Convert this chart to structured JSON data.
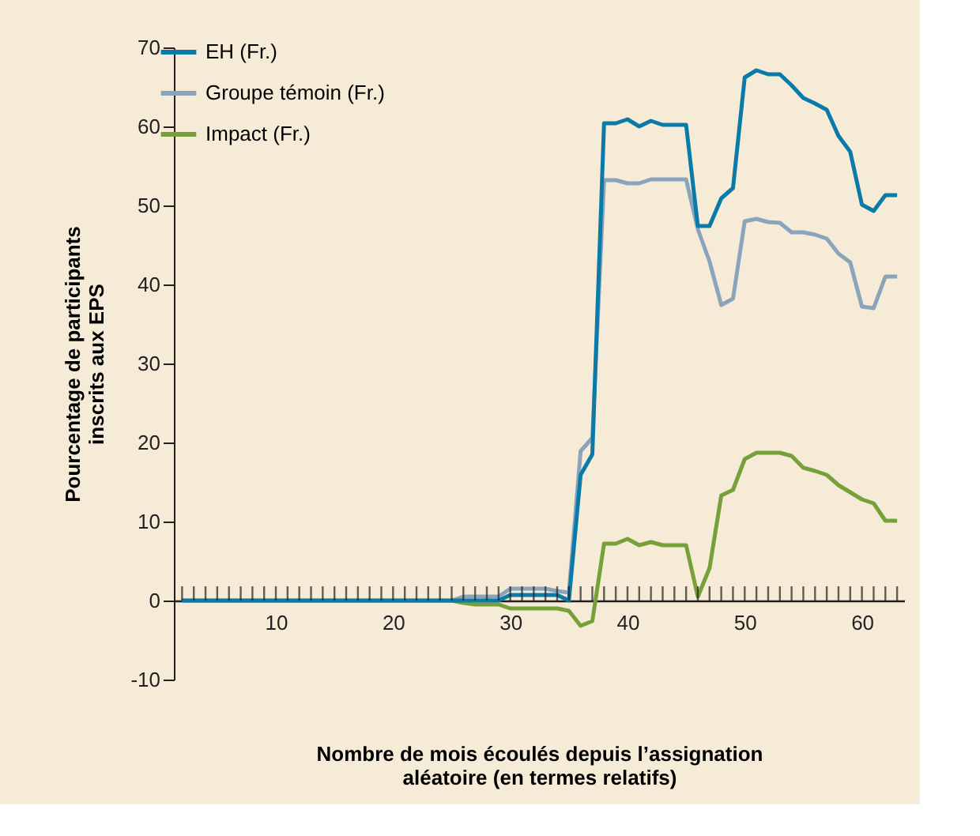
{
  "chart_data": {
    "type": "line",
    "xlabel": "Nombre de mois écoulés depuis l’assignation\naléatoire (en termes relatifs)",
    "ylabel": "Pourcentage de participants\ninscrits aux EPS",
    "x": [
      2,
      3,
      4,
      5,
      6,
      7,
      8,
      9,
      10,
      11,
      12,
      13,
      14,
      15,
      16,
      17,
      18,
      19,
      20,
      21,
      22,
      23,
      24,
      25,
      26,
      27,
      28,
      29,
      30,
      31,
      32,
      33,
      34,
      35,
      36,
      37,
      38,
      39,
      40,
      41,
      42,
      43,
      44,
      45,
      46,
      47,
      48,
      49,
      50,
      51,
      52,
      53,
      54,
      55,
      56,
      57,
      58,
      59,
      60,
      61,
      62,
      63
    ],
    "series": [
      {
        "name": "EH (Fr.)",
        "color": "#0a7aa8",
        "values": [
          0,
          0,
          0,
          0,
          0,
          0,
          0,
          0,
          0,
          0,
          0,
          0,
          0,
          0,
          0,
          0,
          0,
          0,
          0,
          0,
          0,
          0,
          0,
          0,
          0,
          0,
          0,
          0,
          0.7,
          0.7,
          0.7,
          0.7,
          0.7,
          0,
          15.9,
          18.5,
          60.4,
          60.4,
          60.9,
          60.0,
          60.7,
          60.2,
          60.2,
          60.2,
          47.4,
          47.4,
          50.9,
          52.2,
          66.2,
          67.1,
          66.6,
          66.6,
          65.2,
          63.6,
          62.9,
          62.1,
          58.8,
          56.8,
          50.1,
          49.3,
          51.3,
          51.3
        ]
      },
      {
        "name": "Groupe témoin (Fr.)",
        "color": "#8ba4bc",
        "values": [
          0,
          0,
          0,
          0,
          0,
          0,
          0,
          0,
          0,
          0,
          0,
          0,
          0,
          0,
          0,
          0,
          0,
          0,
          0,
          0,
          0,
          0,
          0,
          0,
          0.5,
          0.5,
          0.5,
          0.5,
          1.5,
          1.5,
          1.5,
          1.5,
          1.2,
          1.0,
          18.9,
          20.6,
          53.2,
          53.2,
          52.8,
          52.8,
          53.3,
          53.3,
          53.3,
          53.3,
          47.0,
          42.9,
          37.4,
          38.2,
          48.0,
          48.3,
          47.9,
          47.8,
          46.6,
          46.6,
          46.3,
          45.8,
          43.9,
          42.8,
          37.2,
          37.0,
          41.0,
          41.0
        ]
      },
      {
        "name": "Impact (Fr.)",
        "color": "#77a03a",
        "values": [
          null,
          null,
          null,
          null,
          null,
          null,
          null,
          null,
          null,
          null,
          null,
          null,
          null,
          null,
          null,
          null,
          null,
          null,
          null,
          null,
          null,
          null,
          null,
          0,
          -0.3,
          -0.5,
          -0.5,
          -0.5,
          -1.0,
          -1.0,
          -1.0,
          -1.0,
          -1.0,
          -1.3,
          -3.2,
          -2.6,
          7.2,
          7.2,
          7.8,
          7.0,
          7.4,
          7.0,
          7.0,
          7.0,
          0.5,
          4.1,
          13.3,
          14.0,
          17.9,
          18.7,
          18.7,
          18.7,
          18.3,
          16.8,
          16.4,
          15.9,
          14.6,
          13.7,
          12.8,
          12.3,
          10.1,
          10.1
        ]
      }
    ],
    "xlim": [
      1.3,
      63.6
    ],
    "xticks": [
      {
        "value": 2,
        "label": null
      },
      {
        "value": 3,
        "label": null
      },
      {
        "value": 4,
        "label": null
      },
      {
        "value": 5,
        "label": null
      },
      {
        "value": 6,
        "label": null
      },
      {
        "value": 7,
        "label": null
      },
      {
        "value": 8,
        "label": null
      },
      {
        "value": 9,
        "label": null
      },
      10,
      {
        "value": 11,
        "label": null
      },
      {
        "value": 12,
        "label": null
      },
      {
        "value": 13,
        "label": null
      },
      {
        "value": 14,
        "label": null
      },
      {
        "value": 15,
        "label": null
      },
      {
        "value": 16,
        "label": null
      },
      {
        "value": 17,
        "label": null
      },
      {
        "value": 18,
        "label": null
      },
      {
        "value": 19,
        "label": null
      },
      20,
      {
        "value": 21,
        "label": null
      },
      {
        "value": 22,
        "label": null
      },
      {
        "value": 23,
        "label": null
      },
      {
        "value": 24,
        "label": null
      },
      {
        "value": 25,
        "label": null
      },
      {
        "value": 26,
        "label": null
      },
      {
        "value": 27,
        "label": null
      },
      {
        "value": 28,
        "label": null
      },
      {
        "value": 29,
        "label": null
      },
      30,
      {
        "value": 31,
        "label": null
      },
      {
        "value": 32,
        "label": null
      },
      {
        "value": 33,
        "label": null
      },
      {
        "value": 34,
        "label": null
      },
      {
        "value": 35,
        "label": null
      },
      {
        "value": 36,
        "label": null
      },
      {
        "value": 37,
        "label": null
      },
      {
        "value": 38,
        "label": null
      },
      {
        "value": 39,
        "label": null
      },
      40,
      {
        "value": 41,
        "label": null
      },
      {
        "value": 42,
        "label": null
      },
      {
        "value": 43,
        "label": null
      },
      {
        "value": 44,
        "label": null
      },
      {
        "value": 45,
        "label": null
      },
      {
        "value": 46,
        "label": null
      },
      {
        "value": 47,
        "label": null
      },
      {
        "value": 48,
        "label": null
      },
      {
        "value": 49,
        "label": null
      },
      50,
      {
        "value": 51,
        "label": null
      },
      {
        "value": 52,
        "label": null
      },
      {
        "value": 53,
        "label": null
      },
      {
        "value": 54,
        "label": null
      },
      {
        "value": 55,
        "label": null
      },
      {
        "value": 56,
        "label": null
      },
      {
        "value": 57,
        "label": null
      },
      {
        "value": 58,
        "label": null
      },
      {
        "value": 59,
        "label": null
      },
      60,
      {
        "value": 61,
        "label": null
      },
      {
        "value": 62,
        "label": null
      },
      {
        "value": 63,
        "label": null
      }
    ],
    "ylim": [
      -10,
      70
    ],
    "yticks": [
      -10,
      0,
      10,
      20,
      30,
      40,
      50,
      60,
      70
    ],
    "grid": false,
    "legend": "top left",
    "line_style": "solid",
    "marker": "none"
  }
}
